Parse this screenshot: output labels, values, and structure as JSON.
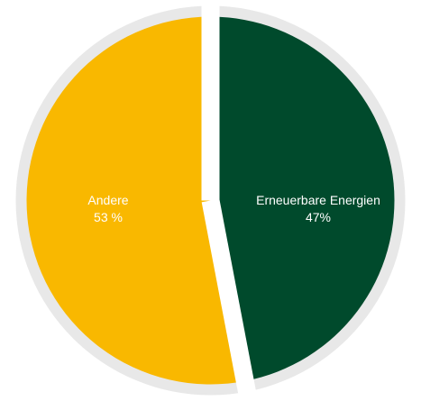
{
  "chart_data": {
    "type": "pie",
    "title": "",
    "slices": [
      {
        "label": "Erneuerbare Energien",
        "value_label": "47%",
        "value": 47,
        "color": "#004a2c"
      },
      {
        "label": "Andere",
        "value_label": "53 %",
        "value": 53,
        "color": "#f9b800"
      }
    ],
    "ring_color": "#e8e8e8",
    "gap_color": "#ffffff"
  }
}
